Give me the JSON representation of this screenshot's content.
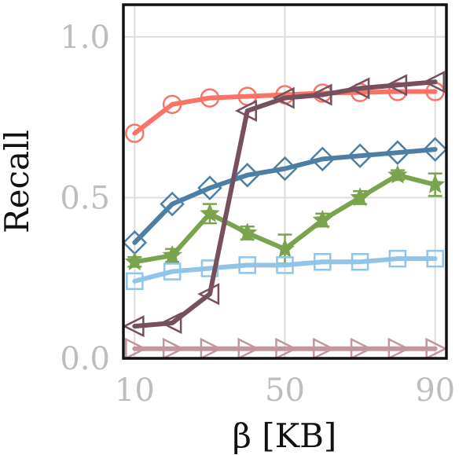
{
  "chart_data": {
    "type": "line",
    "title": "",
    "xlabel": "β [KB]",
    "ylabel": "Recall",
    "xlim": [
      7,
      93
    ],
    "ylim": [
      0,
      1.1
    ],
    "xticks": [
      10,
      50,
      90
    ],
    "xtick_labels": [
      "10",
      "50",
      "90"
    ],
    "yticks": [
      0.0,
      0.5,
      1.0
    ],
    "ytick_labels": [
      "0.0",
      "0.5",
      "1.0"
    ],
    "grid": true,
    "legend": "none",
    "x": [
      10,
      20,
      30,
      40,
      50,
      60,
      70,
      80,
      90
    ],
    "series": [
      {
        "color": "#fa7366",
        "marker": "circle",
        "values": [
          0.7,
          0.79,
          0.81,
          0.815,
          0.82,
          0.825,
          0.827,
          0.83,
          0.83
        ]
      },
      {
        "color": "#4d7fa5",
        "marker": "diamond",
        "values": [
          0.36,
          0.48,
          0.53,
          0.57,
          0.59,
          0.62,
          0.63,
          0.64,
          0.65
        ]
      },
      {
        "color": "#7aa34e",
        "marker": "star",
        "values": [
          0.3,
          0.32,
          0.45,
          0.39,
          0.34,
          0.43,
          0.5,
          0.57,
          0.54
        ],
        "errors": [
          0.015,
          0.02,
          0.03,
          0.02,
          0.045,
          0.02,
          0.02,
          0.015,
          0.035
        ]
      },
      {
        "color": "#92c4e8",
        "marker": "square",
        "values": [
          0.24,
          0.27,
          0.28,
          0.29,
          0.29,
          0.3,
          0.3,
          0.31,
          0.31
        ]
      },
      {
        "color": "#76505e",
        "marker": "triangle-left",
        "values": [
          0.1,
          0.11,
          0.2,
          0.77,
          0.81,
          0.82,
          0.84,
          0.85,
          0.86
        ]
      },
      {
        "color": "#c4949f",
        "marker": "triangle-right",
        "values": [
          0.03,
          0.03,
          0.03,
          0.03,
          0.03,
          0.03,
          0.03,
          0.03,
          0.03
        ]
      }
    ]
  }
}
